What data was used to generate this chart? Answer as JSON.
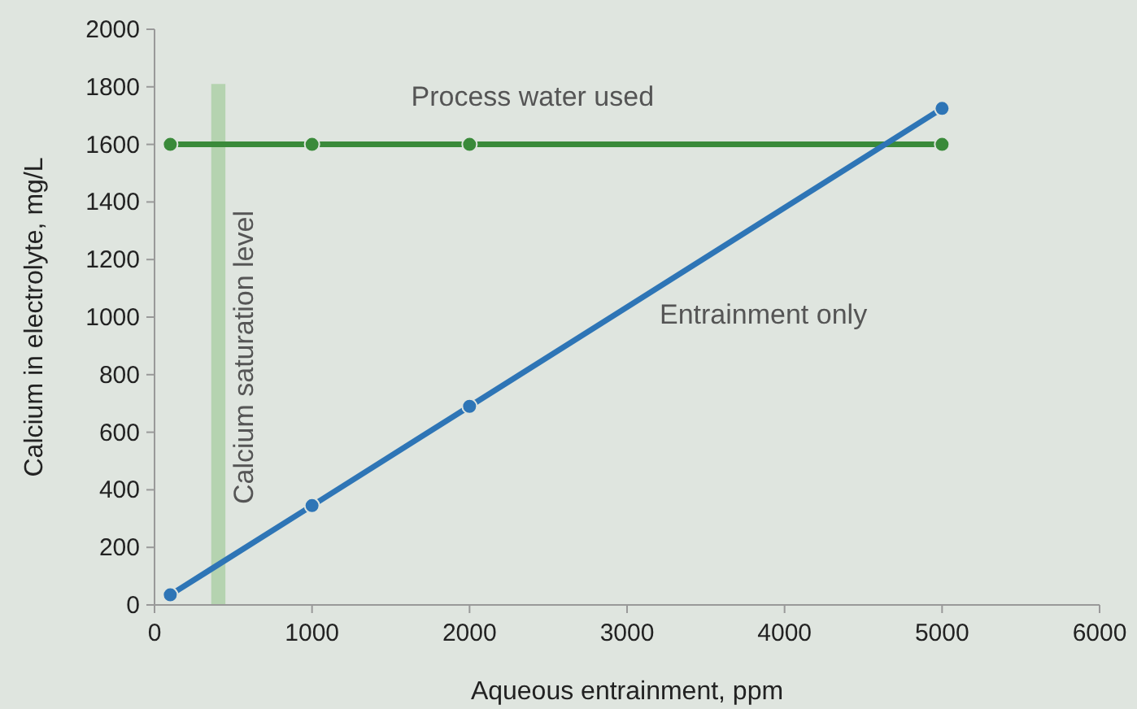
{
  "chart_data": {
    "type": "line",
    "xlabel": "Aqueous entrainment, ppm",
    "ylabel": "Calcium in electrolyte, mg/L",
    "x": [
      100,
      1000,
      2000,
      5000
    ],
    "series": [
      {
        "name": "Process water used",
        "color": "#3a8a3a",
        "values": [
          1600,
          1600,
          1600,
          1600
        ]
      },
      {
        "name": "Entrainment only",
        "color": "#2e75b6",
        "values": [
          35,
          345,
          690,
          1725
        ]
      }
    ],
    "xlim": [
      0,
      6000
    ],
    "xticks": [
      0,
      1000,
      2000,
      3000,
      4000,
      5000,
      6000
    ],
    "ylim": [
      0,
      2000
    ],
    "yticks": [
      0,
      200,
      400,
      600,
      800,
      1000,
      1200,
      1400,
      1600,
      1800,
      2000
    ],
    "bands": [
      {
        "axis": "x",
        "from": 360,
        "to": 450,
        "label": "Calcium saturation level",
        "color": "#b5d3b0"
      }
    ],
    "grid": false,
    "marker": "circle",
    "line_style": "solid"
  }
}
